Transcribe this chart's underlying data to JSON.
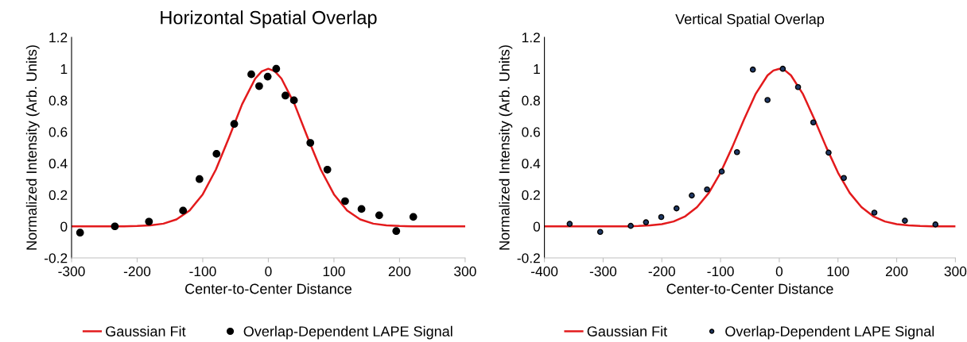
{
  "chart_data": [
    {
      "type": "scatter",
      "title": "Horizontal Spatial Overlap",
      "xlabel": "Center-to-Center Distance",
      "ylabel": "Normalized Intensity (Arb. Units)",
      "xlim": [
        -300,
        300
      ],
      "xticks": [
        -300,
        -200,
        -100,
        0,
        100,
        200,
        300
      ],
      "ylim": [
        -0.2,
        1.2
      ],
      "yticks": [
        -0.2,
        0,
        0.2,
        0.4,
        0.6,
        0.8,
        1,
        1.2
      ],
      "grid": false,
      "legend": "bottom",
      "series": [
        {
          "name": "Gaussian Fit",
          "type": "line",
          "color": "#e31a1c",
          "marker": "none",
          "line_style": "solid",
          "x": [
            -300,
            -280,
            -260,
            -240,
            -220,
            -200,
            -180,
            -160,
            -140,
            -120,
            -100,
            -80,
            -60,
            -40,
            -20,
            -10,
            0,
            10,
            20,
            40,
            60,
            80,
            100,
            120,
            140,
            160,
            180,
            200,
            220,
            240,
            260,
            280,
            300
          ],
          "values": [
            0,
            0,
            0,
            0,
            0,
            0.002,
            0.006,
            0.017,
            0.044,
            0.101,
            0.203,
            0.36,
            0.563,
            0.775,
            0.938,
            0.984,
            1,
            0.984,
            0.938,
            0.775,
            0.563,
            0.36,
            0.203,
            0.101,
            0.044,
            0.017,
            0.006,
            0.002,
            0,
            0,
            0,
            0,
            0
          ]
        },
        {
          "name": "Overlap-Dependent LAPE Signal",
          "color": "#000000",
          "marker": "circle",
          "x": [
            -287,
            -234,
            -182,
            -130,
            -105,
            -79,
            -52,
            -26,
            -14,
            -1,
            12,
            26,
            39,
            64,
            90,
            117,
            142,
            169,
            195,
            221
          ],
          "values": [
            -0.04,
            0.0,
            0.03,
            0.1,
            0.3,
            0.46,
            0.65,
            0.965,
            0.89,
            0.95,
            1.0,
            0.83,
            0.8,
            0.53,
            0.36,
            0.16,
            0.11,
            0.07,
            -0.03,
            0.06
          ]
        }
      ]
    },
    {
      "type": "scatter",
      "title": "Vertical Spatial Overlap",
      "xlabel": "Center-to-Center Distance",
      "ylabel": "Normalized Intensity (Arb. Units)",
      "xlim": [
        -400,
        300
      ],
      "xticks": [
        -400,
        -300,
        -200,
        -100,
        0,
        100,
        200,
        300
      ],
      "ylim": [
        -0.2,
        1.2
      ],
      "yticks": [
        -0.2,
        0,
        0.2,
        0.4,
        0.6,
        0.8,
        1,
        1.2
      ],
      "grid": false,
      "legend": "bottom",
      "series": [
        {
          "name": "Gaussian Fit",
          "type": "line",
          "color": "#e31a1c",
          "marker": "none",
          "line_style": "solid",
          "x": [
            -400,
            -380,
            -360,
            -340,
            -320,
            -300,
            -280,
            -260,
            -240,
            -220,
            -200,
            -180,
            -160,
            -140,
            -120,
            -100,
            -80,
            -60,
            -40,
            -20,
            -10,
            0,
            10,
            20,
            40,
            60,
            80,
            100,
            120,
            140,
            160,
            180,
            200,
            220,
            240,
            260,
            280,
            300
          ],
          "values": [
            0,
            0,
            0,
            0,
            0,
            0,
            0,
            0,
            0.002,
            0.006,
            0.014,
            0.031,
            0.064,
            0.122,
            0.212,
            0.341,
            0.503,
            0.679,
            0.842,
            0.958,
            0.989,
            1,
            0.989,
            0.958,
            0.842,
            0.679,
            0.503,
            0.341,
            0.212,
            0.122,
            0.064,
            0.031,
            0.014,
            0.006,
            0.002,
            0,
            0,
            0
          ]
        },
        {
          "name": "Overlap-Dependent LAPE Signal",
          "color": "#1f3864",
          "marker": "circle",
          "x": [
            -357,
            -305,
            -253,
            -227,
            -201,
            -175,
            -149,
            -123,
            -98,
            -72,
            -45,
            -20,
            6,
            32,
            58,
            84,
            110,
            162,
            214,
            266
          ],
          "values": [
            0.016,
            -0.035,
            0.003,
            0.026,
            0.059,
            0.114,
            0.196,
            0.234,
            0.348,
            0.471,
            0.995,
            0.802,
            1.0,
            0.884,
            0.66,
            0.468,
            0.307,
            0.087,
            0.036,
            0.012
          ]
        }
      ]
    }
  ]
}
